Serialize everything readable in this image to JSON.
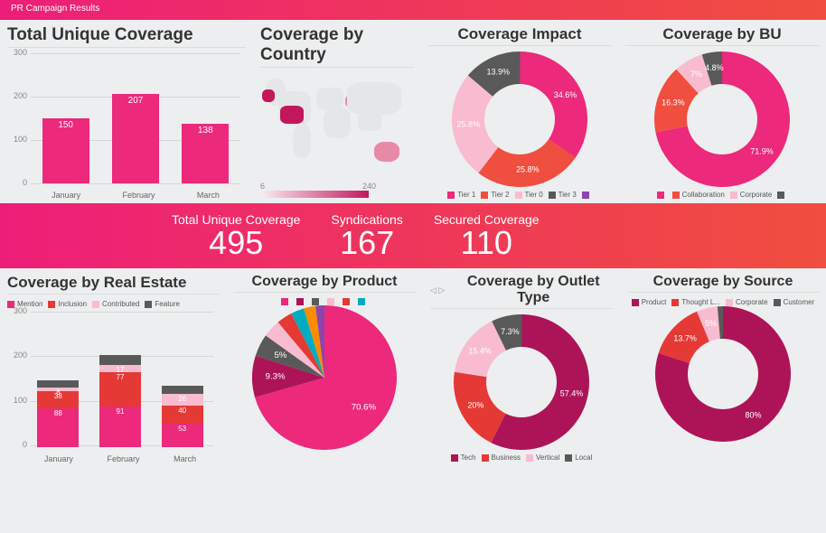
{
  "header": {
    "title": "PR Campaign Results"
  },
  "colors": {
    "pink": "#ec297b",
    "darkpink": "#c2185b",
    "lightpink": "#f8bbd0",
    "red": "#e53935",
    "orange": "#f04e3e",
    "grey": "#595959",
    "teal": "#00acc1",
    "violet": "#8e44ad",
    "ltgrey": "#b0b0b0",
    "orange2": "#fb8c00",
    "maroon": "#ad1457"
  },
  "row1": {
    "total_unique": {
      "title": "Total Unique Coverage",
      "yticks": [
        0,
        100,
        200,
        300
      ],
      "ymax": 300,
      "categories": [
        "January",
        "February",
        "March"
      ],
      "values": [
        150,
        207,
        138
      ],
      "bar_color": "#ec297b"
    },
    "by_country": {
      "title": "Coverage by Country",
      "scale_min": 6,
      "scale_max": 240,
      "gradient": [
        "#f8eef2",
        "#c2185b"
      ]
    },
    "impact": {
      "title": "Coverage Impact",
      "slices": [
        {
          "label": "Tier 1",
          "pct": 34.6,
          "color": "#ec297b"
        },
        {
          "label": "Tier 2",
          "pct": 25.8,
          "color": "#f04e3e"
        },
        {
          "label": "Tier 0",
          "pct": 25.8,
          "color": "#f8bbd0"
        },
        {
          "label": "Tier 3",
          "pct": 13.9,
          "color": "#595959"
        }
      ],
      "extra_legend": {
        "color": "#8e44ad"
      }
    },
    "by_bu": {
      "title": "Coverage by BU",
      "slices": [
        {
          "label": "",
          "pct": 71.9,
          "color": "#ec297b"
        },
        {
          "label": "Collaboration",
          "pct": 16.3,
          "color": "#f04e3e"
        },
        {
          "label": "Corporate",
          "pct": 7.0,
          "color": "#f8bbd0"
        },
        {
          "label": "",
          "pct": 4.8,
          "color": "#595959"
        }
      ]
    }
  },
  "kpi": {
    "items": [
      {
        "label": "Total Unique Coverage",
        "value": "495"
      },
      {
        "label": "Syndications",
        "value": "167"
      },
      {
        "label": "Secured Coverage",
        "value": "110"
      }
    ]
  },
  "row2": {
    "real_estate": {
      "title": "Coverage by Real Estate",
      "legend": [
        {
          "label": "Mention",
          "color": "#ec297b"
        },
        {
          "label": "Inclusion",
          "color": "#e53935"
        },
        {
          "label": "Contributed",
          "color": "#f8bbd0"
        },
        {
          "label": "Feature",
          "color": "#595959"
        }
      ],
      "yticks": [
        0,
        100,
        200,
        300
      ],
      "ymax": 300,
      "categories": [
        "January",
        "February",
        "March"
      ],
      "stacks": [
        {
          "labels": [
            "88",
            "38",
            "8"
          ],
          "vals": [
            88,
            38,
            8,
            16
          ],
          "colors": [
            "#ec297b",
            "#e53935",
            "#f8bbd0",
            "#595959"
          ]
        },
        {
          "labels": [
            "91",
            "77",
            "17"
          ],
          "vals": [
            91,
            77,
            17,
            22
          ],
          "colors": [
            "#ec297b",
            "#e53935",
            "#f8bbd0",
            "#595959"
          ]
        },
        {
          "labels": [
            "53",
            "40",
            "26"
          ],
          "vals": [
            53,
            40,
            26,
            19
          ],
          "colors": [
            "#ec297b",
            "#e53935",
            "#f8bbd0",
            "#595959"
          ]
        }
      ]
    },
    "by_product": {
      "title": "Coverage by Product",
      "slices": [
        {
          "label": "",
          "pct": 70.6,
          "color": "#ec297b"
        },
        {
          "label": "",
          "pct": 9.3,
          "color": "#ad1457"
        },
        {
          "label": "",
          "pct": 5.0,
          "color": "#595959"
        },
        {
          "label": "",
          "pct": 4.0,
          "color": "#f8bbd0"
        },
        {
          "label": "",
          "pct": 3.5,
          "color": "#e53935"
        },
        {
          "label": "",
          "pct": 3.0,
          "color": "#00acc1"
        },
        {
          "label": "",
          "pct": 2.6,
          "color": "#fb8c00"
        },
        {
          "label": "",
          "pct": 2.0,
          "color": "#8e44ad"
        }
      ]
    },
    "outlet_type": {
      "title": "Coverage by Outlet Type",
      "pager": "◁ ▷",
      "slices": [
        {
          "label": "Tech",
          "pct": 57.4,
          "color": "#ad1457"
        },
        {
          "label": "Business",
          "pct": 20.0,
          "color": "#e53935"
        },
        {
          "label": "Vertical",
          "pct": 15.4,
          "color": "#f8bbd0"
        },
        {
          "label": "Local",
          "pct": 7.3,
          "color": "#595959"
        }
      ]
    },
    "by_source": {
      "title": "Coverage by Source",
      "pager": "▷",
      "slices": [
        {
          "label": "Product",
          "pct": 80.0,
          "color": "#ad1457"
        },
        {
          "label": "Thought L...",
          "pct": 13.7,
          "color": "#e53935"
        },
        {
          "label": "Corporate",
          "pct": 5.0,
          "color": "#f8bbd0"
        },
        {
          "label": "Customer",
          "pct": 1.3,
          "color": "#595959"
        }
      ]
    }
  }
}
